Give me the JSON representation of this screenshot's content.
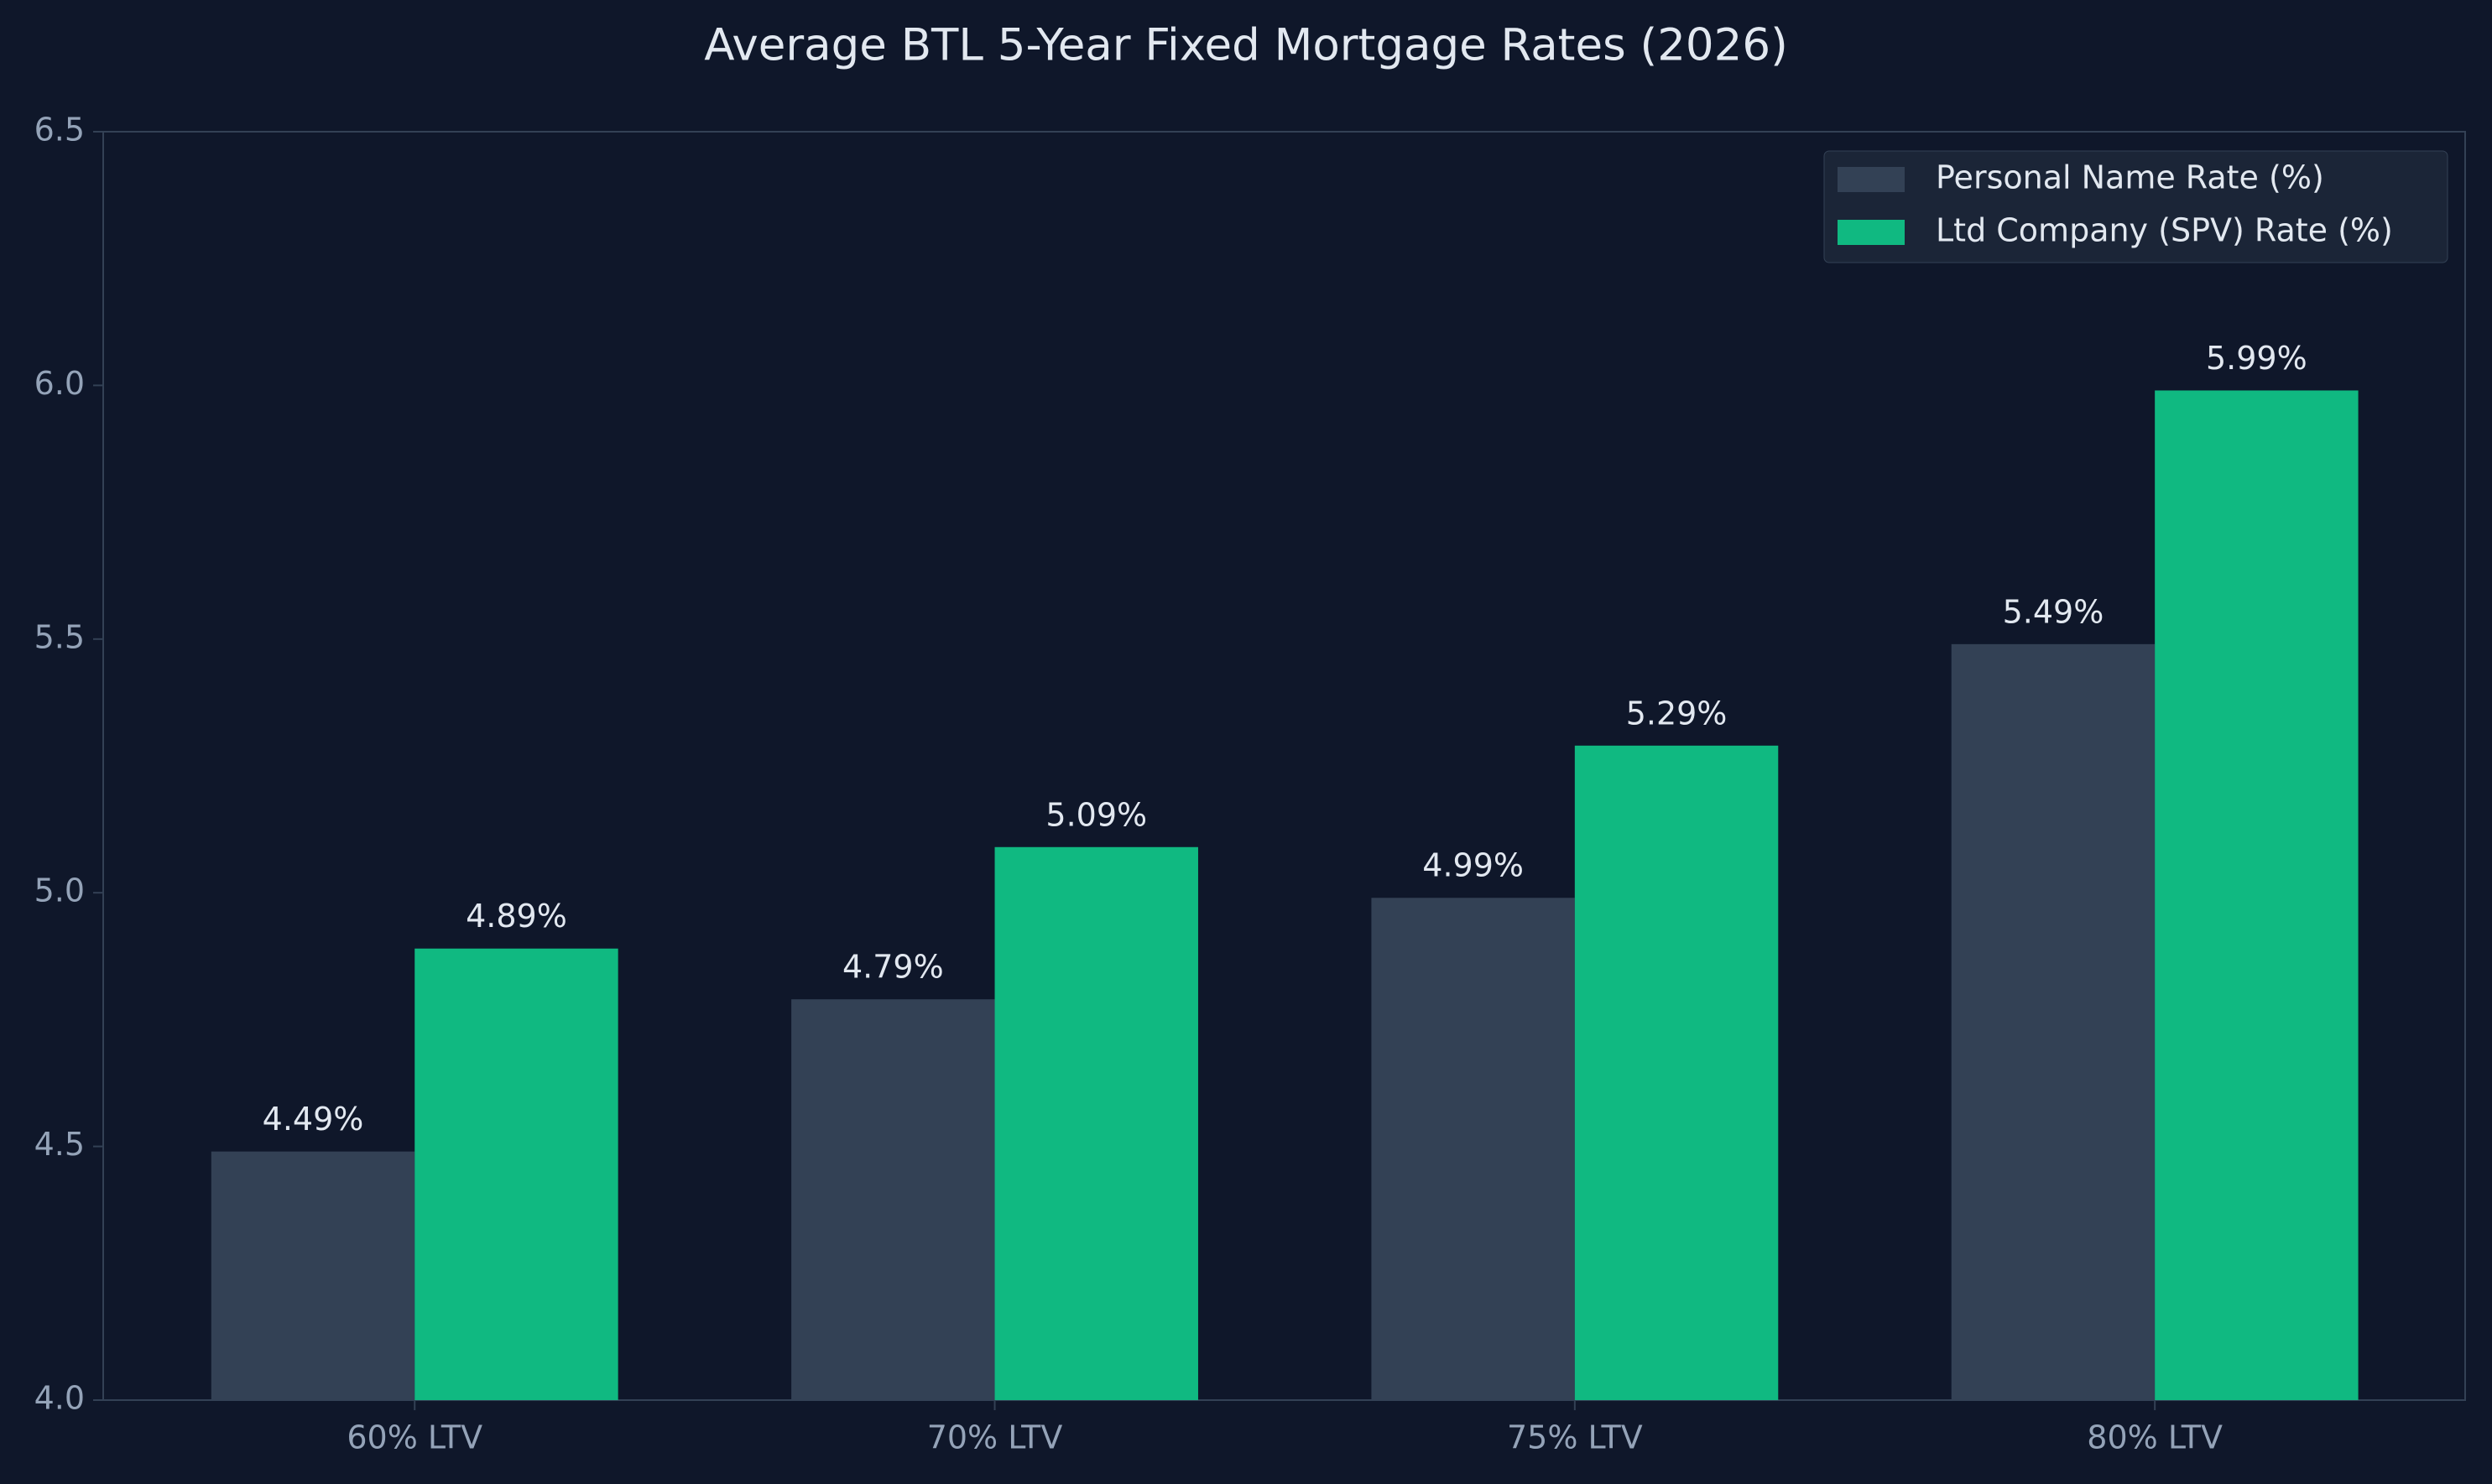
{
  "chart_data": {
    "type": "bar",
    "title": "Average BTL 5-Year Fixed Mortgage Rates (2026)",
    "categories": [
      "60% LTV",
      "70% LTV",
      "75% LTV",
      "80% LTV"
    ],
    "series": [
      {
        "name": "Personal Name Rate (%)",
        "color": "#334155",
        "values": [
          4.49,
          4.79,
          4.99,
          5.49
        ],
        "value_labels": [
          "4.49%",
          "4.79%",
          "4.99%",
          "5.49%"
        ]
      },
      {
        "name": "Ltd Company (SPV) Rate (%)",
        "color": "#10b981",
        "values": [
          4.89,
          5.09,
          5.29,
          5.99
        ],
        "value_labels": [
          "4.89%",
          "5.09%",
          "5.29%",
          "5.99%"
        ]
      }
    ],
    "ylim": [
      4.0,
      6.5
    ],
    "yticks": [
      {
        "value": 4,
        "label": "4.0"
      },
      4.5,
      {
        "value": 5,
        "label": "5.0"
      },
      5.5,
      {
        "value": 6,
        "label": "6.0"
      },
      6.5
    ],
    "grid": false,
    "legend": "upper-right"
  }
}
